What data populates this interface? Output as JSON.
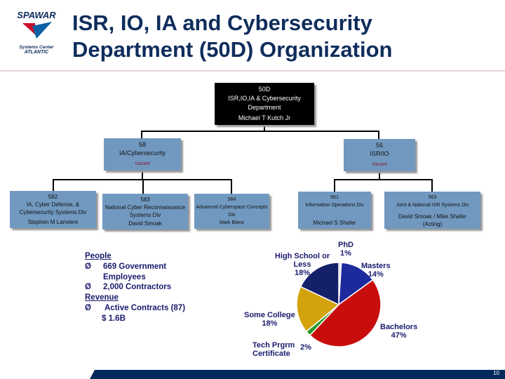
{
  "logo": {
    "brand": "SPAWAR",
    "line1": "Systems Center",
    "line2": "ATLANTIC"
  },
  "title": {
    "line1": "ISR, IO, IA and Cybersecurity",
    "line2": "Department (50D) Organization"
  },
  "org": {
    "top": {
      "code": "50D",
      "name": "ISR,IO,IA & Cybersecurity Department",
      "head": "Michael T Kutch Jr"
    },
    "divisions": [
      {
        "code": "58",
        "name": "IA/Cybersecurity",
        "head": "Vacant"
      },
      {
        "code": "56",
        "name": "ISR/IO",
        "head": "Vacant"
      }
    ],
    "branches": [
      {
        "code": "582",
        "name": "IA, Cyber Defense, & Cybersecurity Systems Div",
        "head": "Stephen M Lariviere"
      },
      {
        "code": "583",
        "name": "National Cyber Reconnaissance Systems Div",
        "head": "David Smoak"
      },
      {
        "code": "584",
        "name": "Advanced Cyberspace Concepts Div",
        "head": "Mark Bienz"
      },
      {
        "code": "561",
        "name": "Information Operations Div",
        "head": "Michael S Shafer"
      },
      {
        "code": "563",
        "name": "Joint & National ISR Systems Div",
        "head": "David Smoak / Mike Shafer (Acting)"
      }
    ]
  },
  "facts": {
    "people_label": "People",
    "people": [
      "669 Government Employees",
      "2,000 Contractors"
    ],
    "revenue_label": "Revenue",
    "revenue": [
      "Active Contracts (87)",
      "$ 1.6B"
    ],
    "bullet": "Ø"
  },
  "chart_data": {
    "type": "pie",
    "slices": [
      {
        "label": "PhD",
        "value": 1,
        "display": "1%",
        "color": "#d8d8d8"
      },
      {
        "label": "Masters",
        "value": 14,
        "display": "14%",
        "color": "#1c2a9c"
      },
      {
        "label": "Bachelors",
        "value": 47,
        "display": "47%",
        "color": "#c80d0d"
      },
      {
        "label": "Tech Prgrm Certificate",
        "value": 2,
        "display": "2%",
        "color": "#2a9a2a"
      },
      {
        "label": "Some College",
        "value": 18,
        "display": "18%",
        "color": "#d4a20c"
      },
      {
        "label": "High School or Less",
        "value": 18,
        "display": "18%",
        "color": "#15206a"
      }
    ]
  },
  "footer": {
    "page": "10",
    "color": "#002a5c"
  }
}
